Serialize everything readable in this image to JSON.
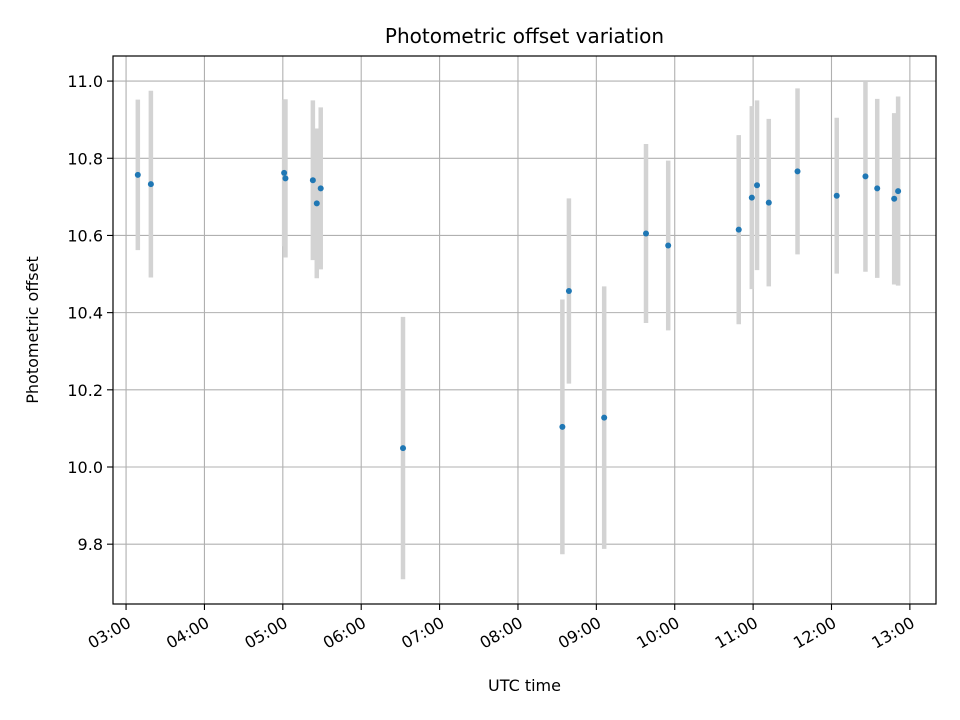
{
  "chart_data": {
    "type": "scatter",
    "title": "Photometric offset variation",
    "xlabel": "UTC time",
    "ylabel": "Photometric offset",
    "grid": true,
    "xlim": [
      "02:50",
      "13:20"
    ],
    "ylim": [
      9.645,
      11.065
    ],
    "x_ticks": [
      "03:00",
      "04:00",
      "05:00",
      "06:00",
      "07:00",
      "08:00",
      "09:00",
      "10:00",
      "11:00",
      "12:00",
      "13:00"
    ],
    "y_ticks": [
      9.8,
      10.0,
      10.2,
      10.4,
      10.6,
      10.8,
      11.0
    ],
    "y_tick_labels": [
      "9.8",
      "10.0",
      "10.2",
      "10.4",
      "10.6",
      "10.8",
      "11.0"
    ],
    "colors": {
      "points": "#1f77b4",
      "errorbars": "#d3d3d3",
      "grid": "#b0b0b0"
    },
    "points": [
      {
        "t": "03:09",
        "y": 10.757,
        "err": 0.195
      },
      {
        "t": "03:19",
        "y": 10.733,
        "err": 0.242
      },
      {
        "t": "05:01",
        "y": 10.762,
        "err": 0.19
      },
      {
        "t": "05:02",
        "y": 10.748,
        "err": 0.205
      },
      {
        "t": "05:23",
        "y": 10.743,
        "err": 0.207
      },
      {
        "t": "05:26",
        "y": 10.683,
        "err": 0.194
      },
      {
        "t": "05:29",
        "y": 10.722,
        "err": 0.21
      },
      {
        "t": "06:32",
        "y": 10.049,
        "err": 0.34
      },
      {
        "t": "08:34",
        "y": 10.104,
        "err": 0.33
      },
      {
        "t": "08:39",
        "y": 10.456,
        "err": 0.24
      },
      {
        "t": "09:06",
        "y": 10.128,
        "err": 0.34
      },
      {
        "t": "09:38",
        "y": 10.605,
        "err": 0.232
      },
      {
        "t": "09:55",
        "y": 10.574,
        "err": 0.22
      },
      {
        "t": "10:49",
        "y": 10.615,
        "err": 0.245
      },
      {
        "t": "10:59",
        "y": 10.698,
        "err": 0.237
      },
      {
        "t": "11:03",
        "y": 10.73,
        "err": 0.22
      },
      {
        "t": "11:12",
        "y": 10.685,
        "err": 0.217
      },
      {
        "t": "11:34",
        "y": 10.766,
        "err": 0.215
      },
      {
        "t": "12:04",
        "y": 10.703,
        "err": 0.202
      },
      {
        "t": "12:26",
        "y": 10.753,
        "err": 0.247
      },
      {
        "t": "12:35",
        "y": 10.722,
        "err": 0.232
      },
      {
        "t": "12:48",
        "y": 10.695,
        "err": 0.222
      },
      {
        "t": "12:51",
        "y": 10.715,
        "err": 0.245
      }
    ]
  }
}
